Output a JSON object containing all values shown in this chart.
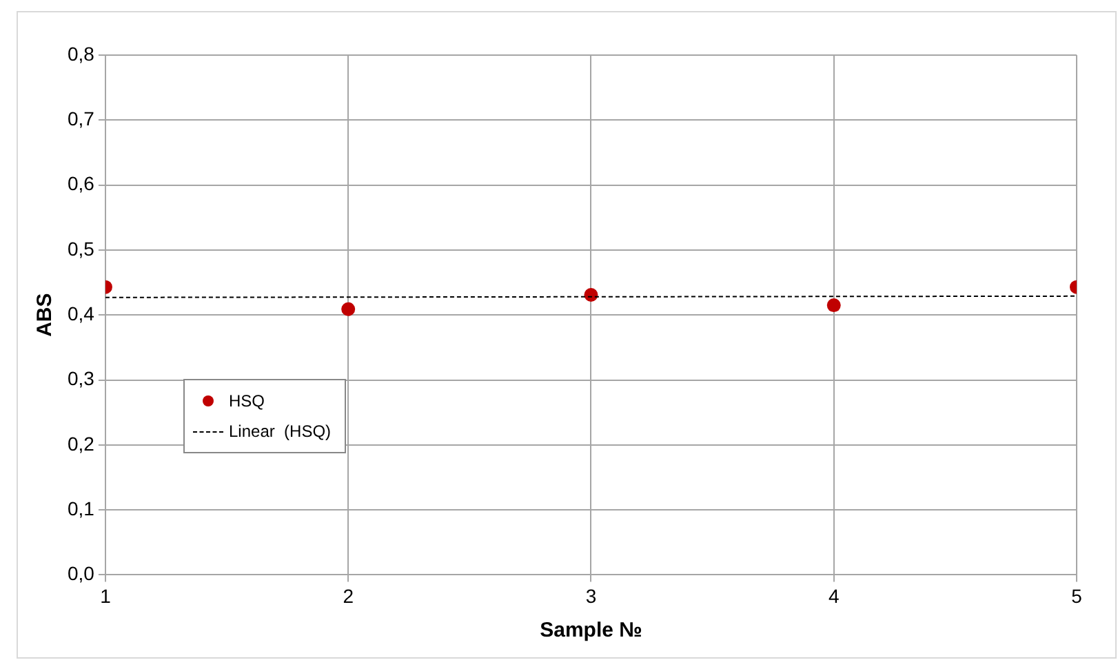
{
  "chart_data": {
    "type": "scatter",
    "xlabel": "Sample №",
    "ylabel": "ABS",
    "x": [
      1,
      2,
      3,
      4,
      5
    ],
    "series": [
      {
        "name": "HSQ",
        "color": "#c00000",
        "values": [
          0.443,
          0.409,
          0.431,
          0.415,
          0.443
        ],
        "marker": "circle"
      },
      {
        "name": "Linear  (HSQ)",
        "type": "line",
        "color": "#000000",
        "x": [
          1,
          5
        ],
        "values": [
          0.427,
          0.429
        ],
        "line_style": "dashed",
        "marker": "none"
      }
    ],
    "xlim": [
      1,
      5
    ],
    "xticks": [
      1,
      2,
      3,
      4,
      5
    ],
    "ylim": [
      0,
      0.8
    ],
    "yticks": [
      {
        "value": 0,
        "label": "0,0"
      },
      {
        "value": 0.1,
        "label": "0,1"
      },
      {
        "value": 0.2,
        "label": "0,2"
      },
      {
        "value": 0.3,
        "label": "0,3"
      },
      {
        "value": 0.4,
        "label": "0,4"
      },
      {
        "value": 0.5,
        "label": "0,5"
      },
      {
        "value": 0.6,
        "label": "0,6"
      },
      {
        "value": 0.7,
        "label": "0,7"
      },
      {
        "value": 0.8,
        "label": "0,8"
      }
    ],
    "grid": true,
    "legend": "left"
  }
}
